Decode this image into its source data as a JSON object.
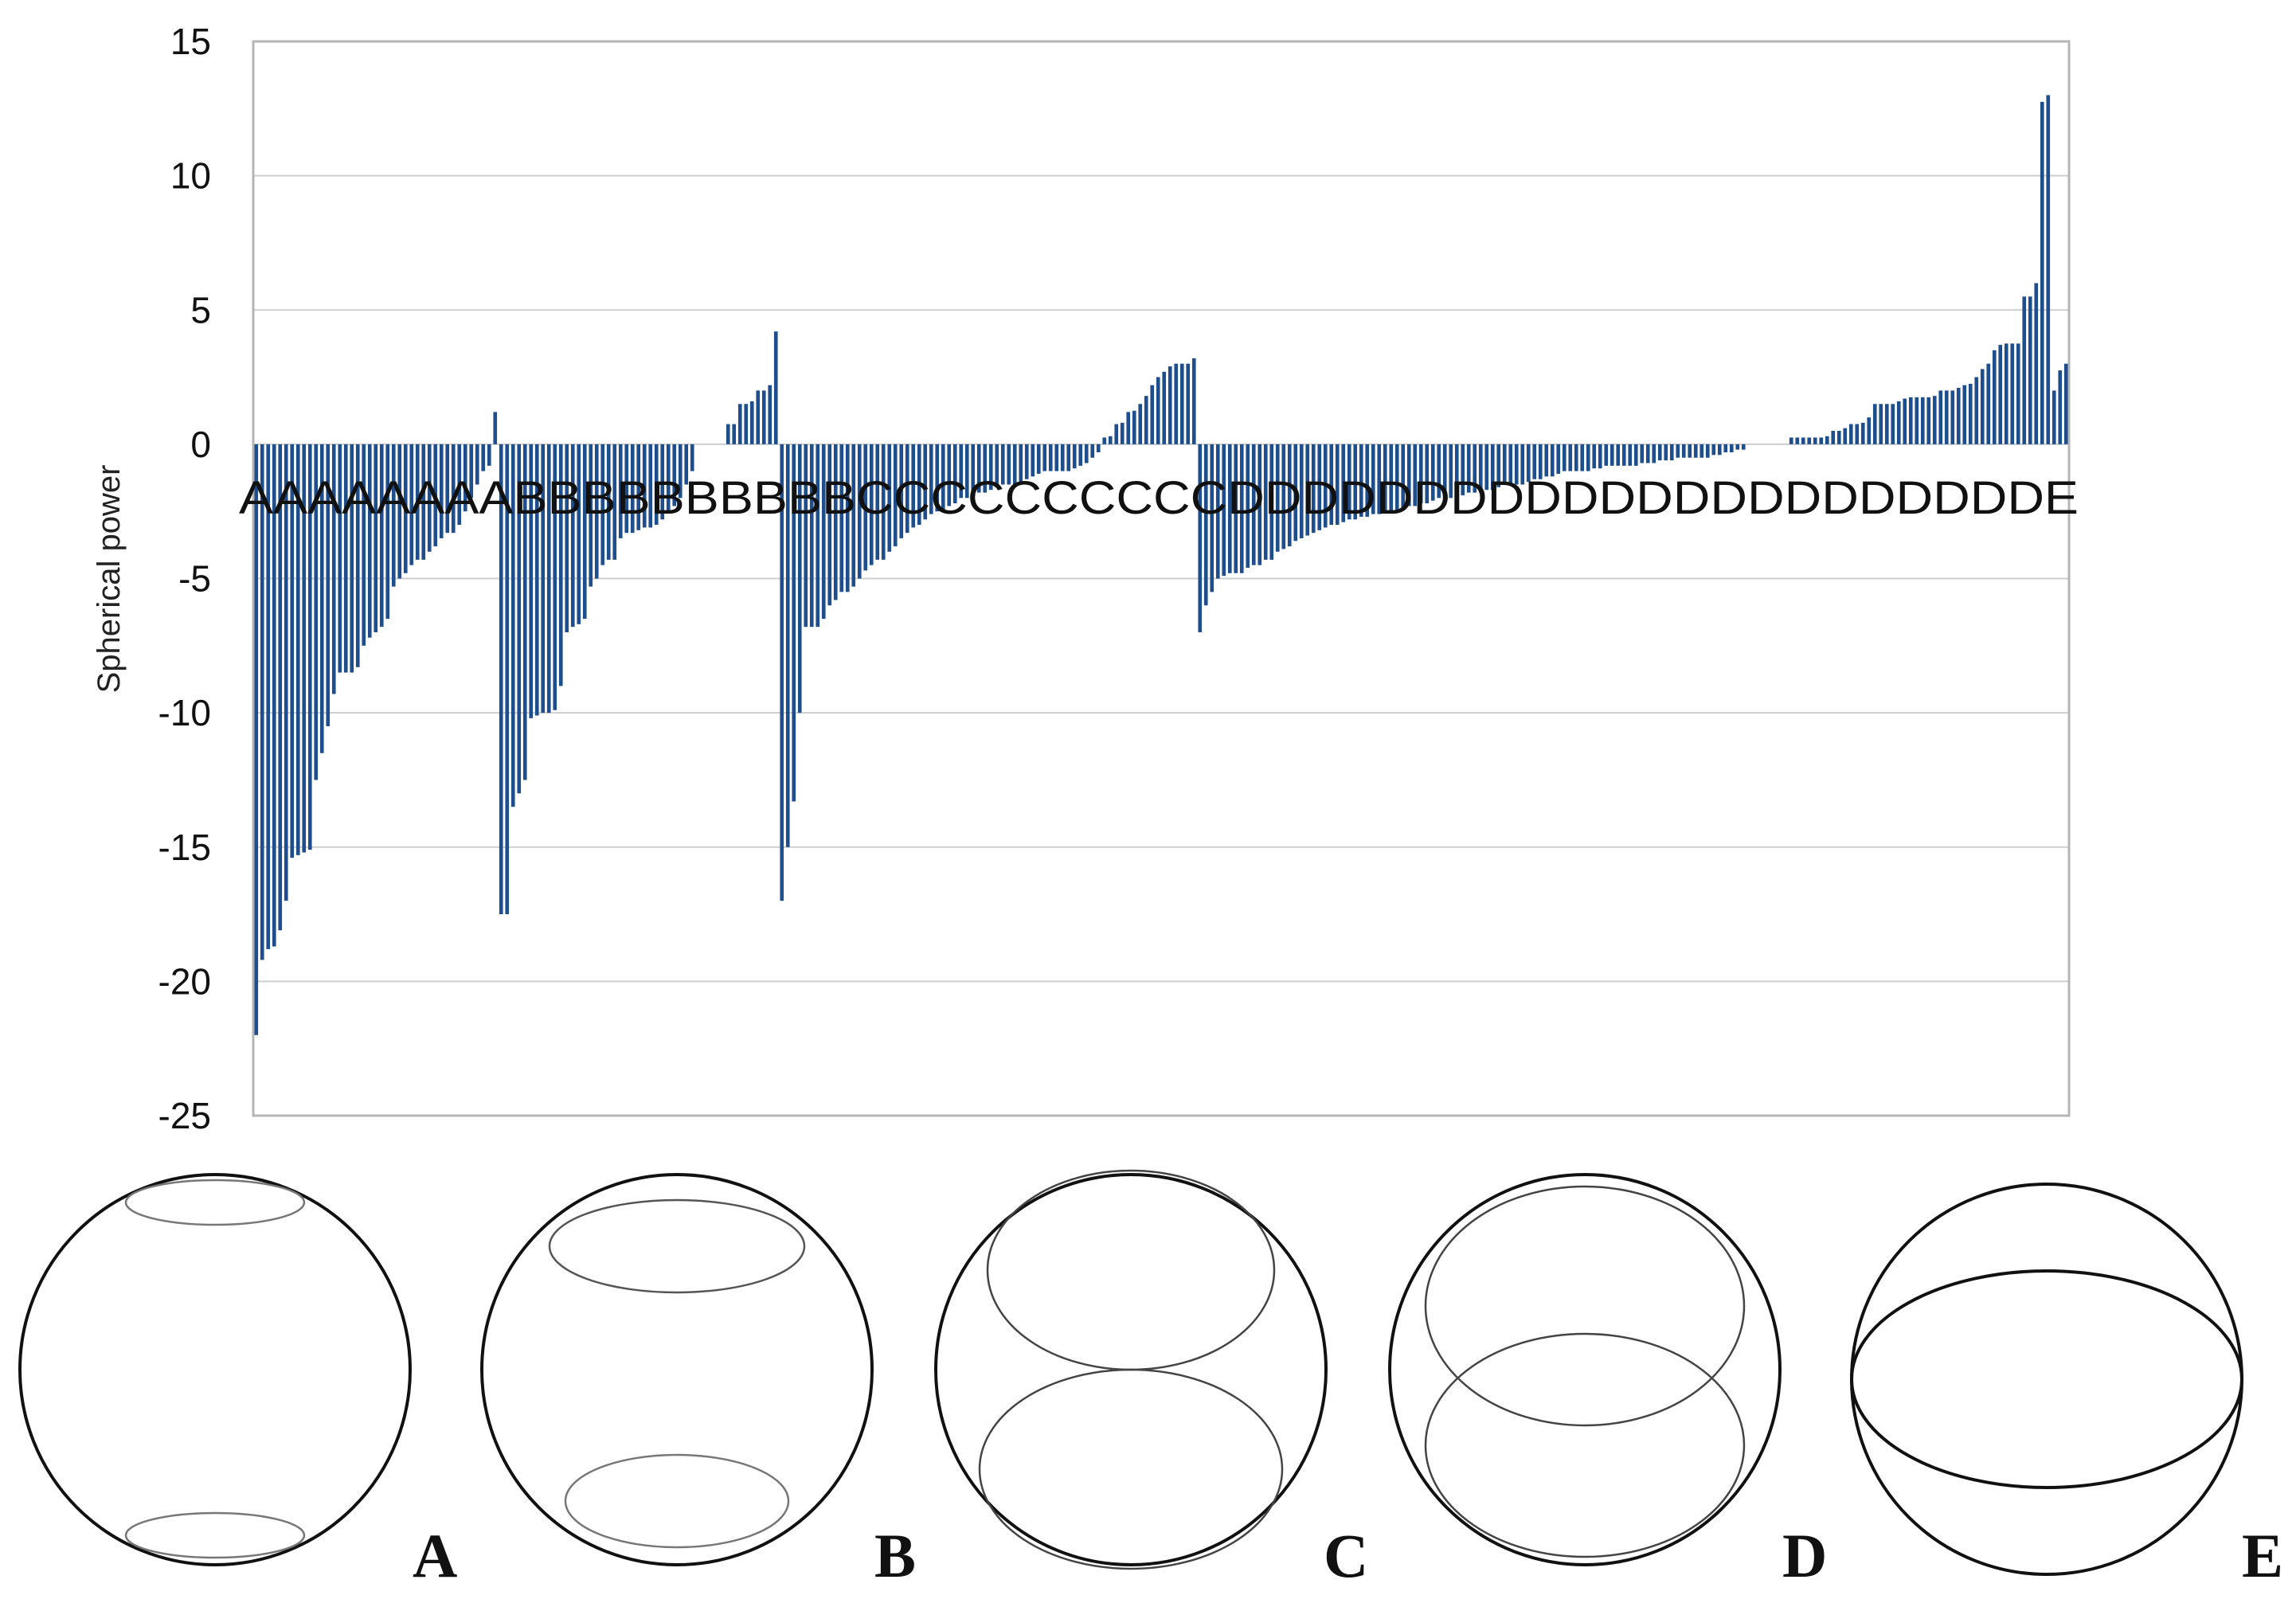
{
  "chart_data": {
    "type": "bar",
    "title": "",
    "xlabel": "",
    "ylabel": "Spherical power",
    "ylim": [
      -25,
      15
    ],
    "yticks": [
      15,
      10,
      5,
      0,
      -5,
      -10,
      -15,
      -20,
      -25
    ],
    "grid": true,
    "bar_color": "#1f4e8c",
    "category_label_row": "AAAAAAAABBBBBBBBBBCCCCCCCCCCDDDDDDDDDDDDDDDDDDDDDDE",
    "groups": [
      {
        "name": "A",
        "values": [
          -22,
          -19.2,
          -18.8,
          -18.7,
          -18.1,
          -17,
          -15.4,
          -15.3,
          -15.2,
          -15.1,
          -12.5,
          -11.5,
          -10.5,
          -9.3,
          -8.5,
          -8.5,
          -8.5,
          -8.3,
          -7.5,
          -7.2,
          -7,
          -6.8,
          -6.5,
          -5.3,
          -5,
          -4.8,
          -4.5,
          -4.3,
          -4.3,
          -4,
          -3.8,
          -3.5,
          -3.3,
          -3.3,
          -3,
          -2.5,
          -2,
          -1.5,
          -1,
          -0.8,
          1.2
        ]
      },
      {
        "name": "B",
        "values": [
          -17.5,
          -17.5,
          -13.5,
          -13,
          -12.5,
          -10.2,
          -10.1,
          -10,
          -10,
          -9.9,
          -9,
          -7,
          -6.8,
          -6.7,
          -6.5,
          -5.3,
          -5,
          -4.5,
          -4.3,
          -4.3,
          -3.5,
          -3.3,
          -3.3,
          -3.2,
          -3.1,
          -3.1,
          -3,
          -2.8,
          -2.5,
          -2.3,
          -2,
          -1.5,
          -1,
          0,
          0,
          0,
          0,
          0,
          0.75,
          0.75,
          1.5,
          1.5,
          1.6,
          2,
          2,
          2.2,
          4.2
        ]
      },
      {
        "name": "C",
        "values": [
          -17,
          -15,
          -13.3,
          -10,
          -6.8,
          -6.8,
          -6.8,
          -6.5,
          -6,
          -5.8,
          -5.5,
          -5.5,
          -5.3,
          -5,
          -4.7,
          -4.5,
          -4.3,
          -4.3,
          -4,
          -3.8,
          -3.5,
          -3.3,
          -3.1,
          -3,
          -2.8,
          -2.6,
          -2.5,
          -2.5,
          -2.3,
          -2.2,
          -2,
          -2,
          -1.9,
          -1.8,
          -1.8,
          -1.7,
          -1.6,
          -1.5,
          -1.5,
          -1.5,
          -1.4,
          -1.3,
          -1.2,
          -1.1,
          -1,
          -1,
          -1,
          -1,
          -1,
          -0.9,
          -0.8,
          -0.7,
          -0.5,
          -0.3,
          0.25,
          0.3,
          0.75,
          0.8,
          1.2,
          1.25,
          1.5,
          1.8,
          2.2,
          2.5,
          2.7,
          2.9,
          3,
          3,
          3,
          3.2
        ]
      },
      {
        "name": "D",
        "values": [
          -7,
          -6,
          -5.5,
          -5,
          -4.9,
          -4.8,
          -4.8,
          -4.8,
          -4.6,
          -4.5,
          -4.5,
          -4.3,
          -4.3,
          -4,
          -3.9,
          -3.8,
          -3.6,
          -3.5,
          -3.4,
          -3.3,
          -3.2,
          -3.1,
          -3,
          -3,
          -2.9,
          -2.8,
          -2.8,
          -2.7,
          -2.7,
          -2.6,
          -2.6,
          -2.5,
          -2.5,
          -2.5,
          -2.4,
          -2.3,
          -2.3,
          -2.2,
          -2.2,
          -2.1,
          -2,
          -2,
          -2,
          -2,
          -1.9,
          -1.8,
          -1.8,
          -1.8,
          -1.7,
          -1.7,
          -1.6,
          -1.5,
          -1.5,
          -1.5,
          -1.5,
          -1.4,
          -1.3,
          -1.3,
          -1.2,
          -1.2,
          -1.1,
          -1,
          -1,
          -1,
          -1,
          -1,
          -0.9,
          -0.9,
          -0.8,
          -0.8,
          -0.8,
          -0.8,
          -0.8,
          -0.8,
          -0.7,
          -0.7,
          -0.7,
          -0.6,
          -0.6,
          -0.6,
          -0.5,
          -0.5,
          -0.5,
          -0.5,
          -0.5,
          -0.5,
          -0.4,
          -0.4,
          -0.3,
          -0.3,
          -0.2,
          -0.2,
          0,
          0,
          0,
          0,
          0,
          0,
          0,
          0.25,
          0.25,
          0.25,
          0.25,
          0.25,
          0.25,
          0.3,
          0.5,
          0.5,
          0.6,
          0.75,
          0.75,
          0.8,
          1,
          1.5,
          1.5,
          1.5,
          1.5,
          1.6,
          1.7,
          1.75,
          1.75,
          1.75,
          1.75,
          1.8,
          2,
          2,
          2,
          2.1,
          2.2,
          2.25,
          2.5,
          2.8,
          3,
          3.5,
          3.7,
          3.75,
          3.75,
          3.75,
          5.5,
          5.5,
          6,
          12.75,
          13,
          2,
          2.75
        ]
      },
      {
        "name": "E",
        "values": [
          3
        ]
      }
    ],
    "panels": [
      {
        "label": "A",
        "description_name": "sphere with small top and bottom rings"
      },
      {
        "label": "B",
        "description_name": "sphere with medium top and bottom rings"
      },
      {
        "label": "C",
        "description_name": "sphere with two tangent rings"
      },
      {
        "label": "D",
        "description_name": "sphere with two overlapping rings"
      },
      {
        "label": "E",
        "description_name": "sphere with equatorial ring"
      }
    ]
  }
}
